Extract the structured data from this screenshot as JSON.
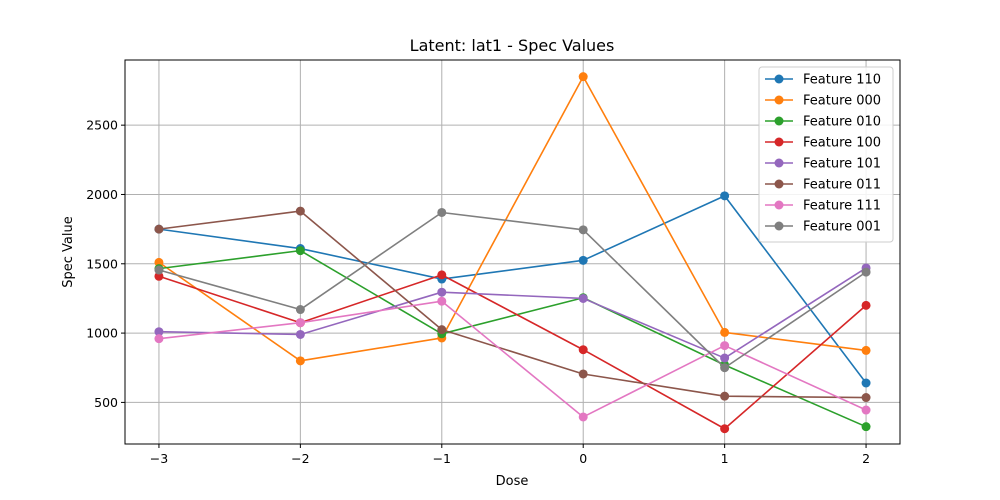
{
  "chart_data": {
    "type": "line",
    "title": "Latent: lat1 - Spec Values",
    "xlabel": "Dose",
    "ylabel": "Spec Value",
    "x": [
      -3,
      -2,
      -1,
      0,
      1,
      2
    ],
    "x_tick_labels": [
      "−3",
      "−2",
      "−1",
      "0",
      "1",
      "2"
    ],
    "y_ticks": [
      500,
      1000,
      1500,
      2000,
      2500
    ],
    "y_tick_labels": [
      "500",
      "1000",
      "1500",
      "2000",
      "2500"
    ],
    "xlim": [
      -3.24,
      2.24
    ],
    "ylim": [
      200,
      2970
    ],
    "grid": true,
    "legend_position": "top-right",
    "series": [
      {
        "name": "Feature 110",
        "color": "#1f77b4",
        "values": [
          1750,
          1610,
          1390,
          1525,
          1990,
          640
        ]
      },
      {
        "name": "Feature 000",
        "color": "#ff7f0e",
        "values": [
          1510,
          800,
          965,
          2850,
          1005,
          875
        ]
      },
      {
        "name": "Feature 010",
        "color": "#2ca02c",
        "values": [
          1465,
          1595,
          995,
          1255,
          770,
          325
        ]
      },
      {
        "name": "Feature 100",
        "color": "#d62728",
        "values": [
          1410,
          1075,
          1420,
          880,
          310,
          1200
        ]
      },
      {
        "name": "Feature 101",
        "color": "#9467bd",
        "values": [
          1010,
          990,
          1295,
          1250,
          820,
          1470
        ]
      },
      {
        "name": "Feature 011",
        "color": "#8c564b",
        "values": [
          1750,
          1880,
          1025,
          705,
          545,
          535
        ]
      },
      {
        "name": "Feature 111",
        "color": "#e377c2",
        "values": [
          960,
          1075,
          1230,
          395,
          910,
          445
        ]
      },
      {
        "name": "Feature 001",
        "color": "#7f7f7f",
        "values": [
          1455,
          1170,
          1870,
          1745,
          750,
          1440
        ]
      }
    ]
  }
}
